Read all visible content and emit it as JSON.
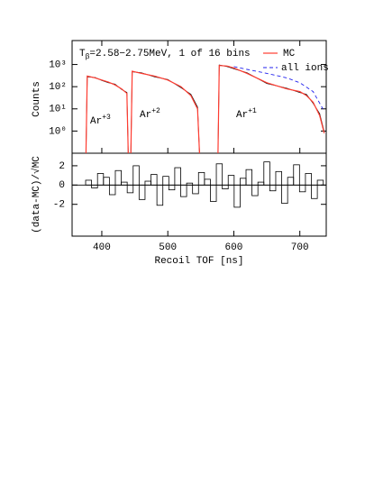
{
  "chart_data": [
    {
      "type": "step-log",
      "title_main": "T",
      "title_sub": "β",
      "title_rest": "=2.58−2.75MeV, 1 of 16 bins",
      "ylabel": "Counts",
      "annotations": [
        [
          "Ar",
          "+3"
        ],
        [
          "Ar",
          "+2"
        ],
        [
          "Ar",
          "+1"
        ]
      ],
      "xlim": [
        355,
        740
      ],
      "ylim": [
        0.1,
        12000
      ],
      "log_y": true,
      "yticks": [
        {
          "value": 1,
          "label": "10⁰"
        },
        {
          "value": 10,
          "label": "10¹"
        },
        {
          "value": 100,
          "label": "10²"
        },
        {
          "value": 1000,
          "label": "10³"
        }
      ],
      "x": [
        376,
        378,
        390,
        400,
        410,
        420,
        430,
        438,
        440,
        442,
        444,
        446,
        460,
        480,
        500,
        520,
        535,
        545,
        548,
        560,
        576,
        578,
        590,
        600,
        620,
        650,
        680,
        700,
        710,
        720,
        730,
        737
      ],
      "series": [
        {
          "values": [
            0.1,
            280,
            260,
            190,
            150,
            130,
            75,
            55,
            0.1,
            null,
            0.1,
            470,
            420,
            280,
            210,
            90,
            45,
            12,
            0.1,
            null,
            0.1,
            950,
            800,
            650,
            420,
            140,
            85,
            55,
            45,
            18,
            6,
            0.9
          ],
          "color": "#000000",
          "style": "data"
        },
        {
          "name": "MC",
          "values": [
            0.1,
            300,
            250,
            200,
            160,
            120,
            80,
            50,
            0.1,
            null,
            0.1,
            500,
            400,
            300,
            200,
            100,
            40,
            10,
            0.1,
            null,
            0.1,
            900,
            850,
            700,
            400,
            150,
            80,
            60,
            40,
            20,
            5,
            0.8
          ],
          "color": "#ff3b30",
          "style": "solid"
        }
      ],
      "extra_series": {
        "name": "all ions",
        "x": [
          600,
          620,
          650,
          680,
          700,
          720,
          735
        ],
        "values": [
          800,
          600,
          400,
          250,
          150,
          60,
          10
        ],
        "color": "#2222ee",
        "style": "dashed"
      }
    },
    {
      "type": "residual",
      "ylabel": "(data-MC)/√MC",
      "xlabel": "Recoil TOF [ns]",
      "xlim": [
        355,
        740
      ],
      "xticks": [
        400,
        500,
        600,
        700
      ],
      "ylim": [
        -5.3,
        3.3
      ],
      "yticks": [
        -2,
        0,
        2
      ],
      "bin_width": 9,
      "x": [
        380,
        389,
        398,
        407,
        416,
        425,
        434,
        443,
        452,
        461,
        470,
        479,
        488,
        497,
        506,
        515,
        524,
        533,
        542,
        551,
        560,
        569,
        578,
        587,
        596,
        605,
        614,
        623,
        632,
        641,
        650,
        659,
        668,
        677,
        686,
        695,
        704,
        713,
        722,
        731
      ],
      "values": [
        0.5,
        -0.3,
        1.2,
        0.8,
        -1.0,
        1.5,
        0.3,
        -0.8,
        2.0,
        -1.5,
        0.4,
        1.1,
        -2.1,
        0.9,
        -0.5,
        1.8,
        -1.2,
        0.2,
        -0.9,
        1.3,
        0.6,
        -1.7,
        2.2,
        -0.4,
        1.0,
        -2.3,
        0.7,
        1.6,
        -1.1,
        0.3,
        2.4,
        -0.6,
        1.4,
        -1.9,
        0.8,
        2.1,
        -0.7,
        1.2,
        -1.4,
        0.5
      ],
      "color": "#000000"
    }
  ]
}
